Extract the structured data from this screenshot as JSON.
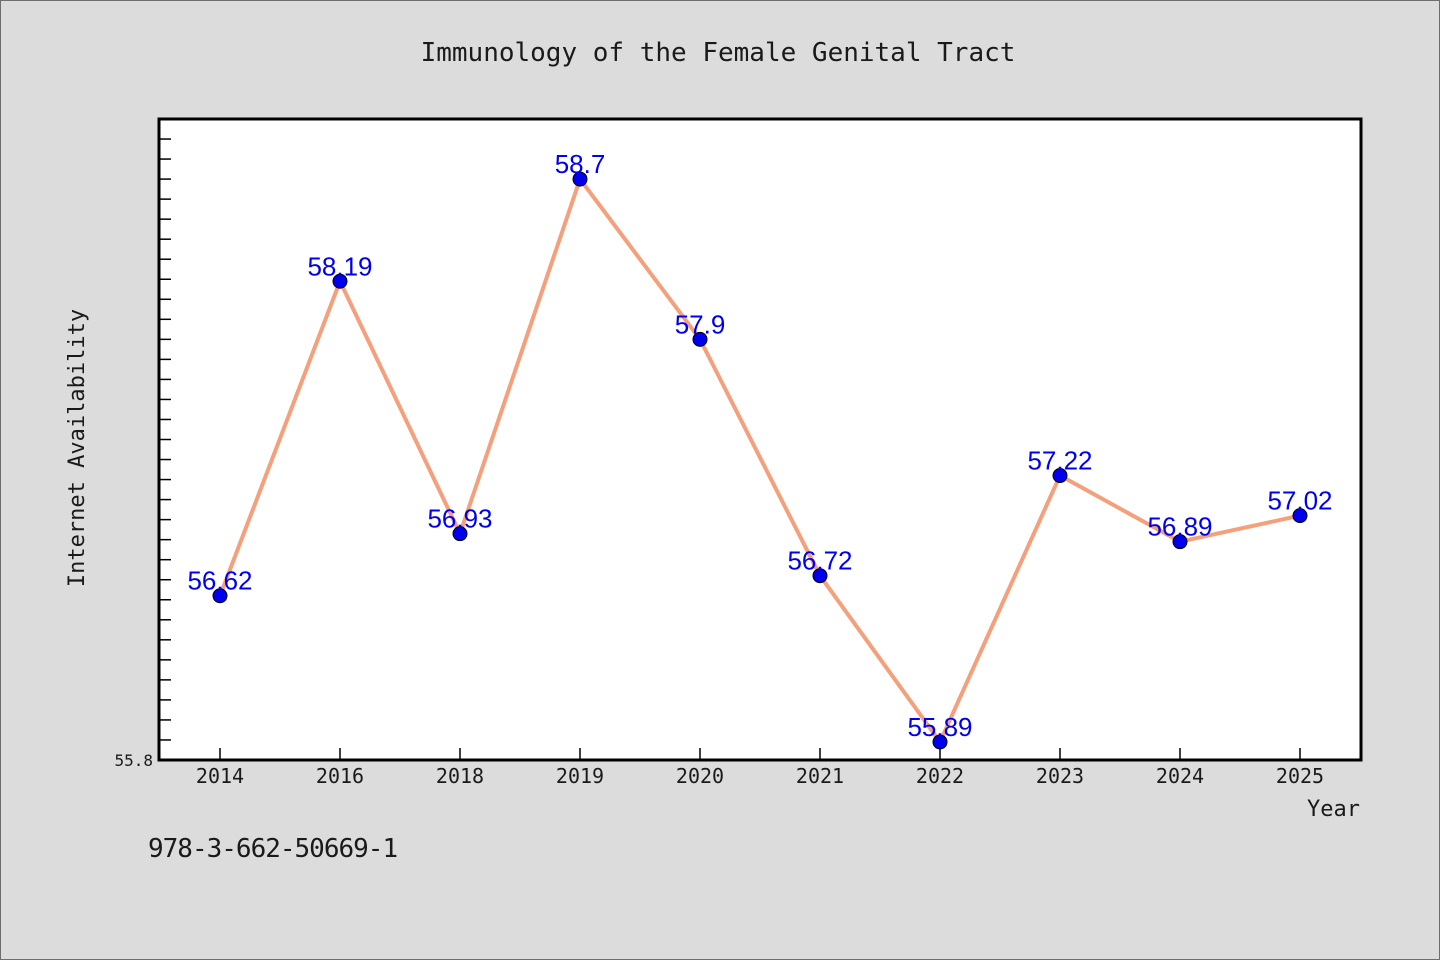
{
  "chart_data": {
    "type": "line",
    "title": "Immunology of the Female Genital Tract",
    "xlabel": "Year",
    "ylabel": "Internet Availability",
    "categories": [
      "2014",
      "2016",
      "2018",
      "2019",
      "2020",
      "2021",
      "2022",
      "2023",
      "2024",
      "2025"
    ],
    "series": [
      {
        "values": [
          56.62,
          58.19,
          56.93,
          58.7,
          57.9,
          56.72,
          55.89,
          57.22,
          56.89,
          57.02
        ],
        "labels": [
          "56.62",
          "58.19",
          "56.93",
          "58.7",
          "57.9",
          "56.72",
          "55.89",
          "57.22",
          "56.89",
          "57.02"
        ],
        "line_color": "#f4a07c",
        "marker_color": "#0000ee",
        "label_color": "#0000ee"
      }
    ],
    "ylim": [
      55.8,
      59.0
    ],
    "yticks_labeled": [
      "55.8"
    ],
    "grid": false,
    "legend": false
  },
  "footnote": "978-3-662-50669-1"
}
